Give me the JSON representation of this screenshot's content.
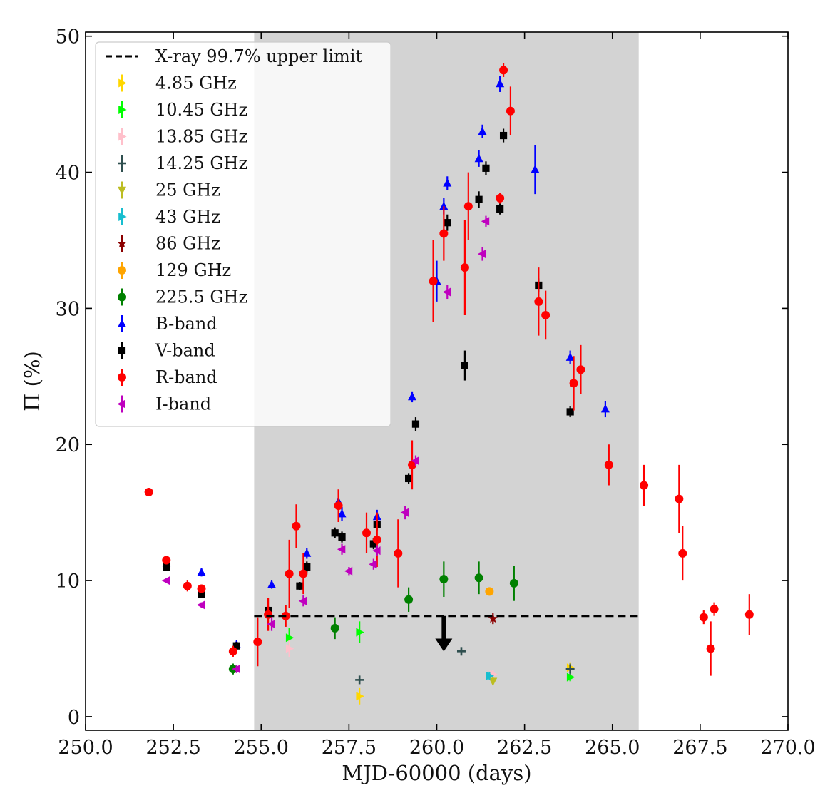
{
  "chart_data": {
    "type": "scatter",
    "title": "",
    "xlabel": "MJD-60000 (days)",
    "ylabel": "Π (%)",
    "xlim": [
      250.0,
      270.0
    ],
    "ylim": [
      -1.0,
      50.3
    ],
    "xticks": [
      250.0,
      252.5,
      255.0,
      257.5,
      260.0,
      262.5,
      265.0,
      267.5,
      270.0
    ],
    "xtick_labels": [
      "250.0",
      "252.5",
      "255.0",
      "257.5",
      "260.0",
      "262.5",
      "265.0",
      "267.5",
      "270.0"
    ],
    "yticks": [
      0,
      10,
      20,
      30,
      40,
      50
    ],
    "ytick_labels": [
      "0",
      "10",
      "20",
      "30",
      "40",
      "50"
    ],
    "grid": false,
    "legend_position": "upper-left",
    "shaded_interval": {
      "x_start": 254.8,
      "x_end": 265.75,
      "color": "#d3d3d3"
    },
    "upper_limit": {
      "name": "X-ray 99.7% upper limit",
      "x_range": [
        254.8,
        265.75
      ],
      "value": 7.4,
      "arrow_x": 260.2,
      "arrow_to": 5.0,
      "color": "#000000"
    },
    "series": [
      {
        "name": "4.85 GHz",
        "color": "#ffd700",
        "marker": "tri-right",
        "points": [
          [
            257.8,
            1.5,
            0.6
          ],
          [
            263.8,
            3.6,
            0.4
          ]
        ]
      },
      {
        "name": "10.45 GHz",
        "color": "#00ff00",
        "marker": "tri-right",
        "points": [
          [
            255.8,
            5.8,
            0.7
          ],
          [
            257.8,
            6.2,
            0.8
          ],
          [
            263.8,
            2.9,
            0.3
          ]
        ]
      },
      {
        "name": "13.85 GHz",
        "color": "#ffc0cb",
        "marker": "tri-right",
        "points": [
          [
            255.8,
            5.0,
            0.6
          ],
          [
            261.6,
            3.1,
            0.3
          ]
        ]
      },
      {
        "name": "14.25 GHz",
        "color": "#2f4f4f",
        "marker": "plus",
        "points": [
          [
            257.8,
            2.7,
            0.3
          ],
          [
            260.7,
            4.8,
            0.3
          ],
          [
            263.8,
            3.5,
            0.4
          ]
        ]
      },
      {
        "name": "25 GHz",
        "color": "#bcbd22",
        "marker": "tri-down",
        "points": [
          [
            261.6,
            2.6,
            0.3
          ]
        ]
      },
      {
        "name": "43 GHz",
        "color": "#17becf",
        "marker": "tri-right",
        "points": [
          [
            261.5,
            3.0,
            0.3
          ]
        ]
      },
      {
        "name": "86 GHz",
        "color": "#8b0000",
        "marker": "star",
        "points": [
          [
            261.6,
            7.2,
            0.4
          ]
        ]
      },
      {
        "name": "129 GHz",
        "color": "#ffa500",
        "marker": "circle",
        "points": [
          [
            261.5,
            9.2,
            0.3
          ]
        ]
      },
      {
        "name": "225.5 GHz",
        "color": "#008000",
        "marker": "circle",
        "points": [
          [
            254.2,
            3.5,
            0.4
          ],
          [
            257.1,
            6.5,
            0.8
          ],
          [
            259.2,
            8.6,
            0.9
          ],
          [
            260.2,
            10.1,
            1.3
          ],
          [
            261.2,
            10.2,
            1.2
          ],
          [
            262.2,
            9.8,
            1.3
          ]
        ]
      },
      {
        "name": "B-band",
        "color": "#0000ff",
        "marker": "triangle-up",
        "points": [
          [
            252.3,
            11.3,
            0.3
          ],
          [
            253.3,
            10.6,
            0.3
          ],
          [
            254.3,
            5.3,
            0.3
          ],
          [
            255.3,
            9.7,
            0.3
          ],
          [
            256.3,
            12.0,
            0.4
          ],
          [
            257.2,
            15.8,
            0.6
          ],
          [
            257.3,
            14.9,
            0.5
          ],
          [
            258.3,
            14.7,
            0.5
          ],
          [
            259.3,
            23.5,
            0.4
          ],
          [
            260.0,
            32.0,
            1.5
          ],
          [
            260.2,
            37.5,
            0.6
          ],
          [
            260.3,
            39.2,
            0.5
          ],
          [
            261.2,
            41.0,
            0.6
          ],
          [
            261.3,
            43.0,
            0.5
          ],
          [
            261.8,
            46.5,
            0.6
          ],
          [
            262.8,
            40.2,
            1.8
          ],
          [
            263.8,
            26.4,
            0.5
          ],
          [
            264.8,
            22.6,
            0.6
          ]
        ]
      },
      {
        "name": "V-band",
        "color": "#000000",
        "marker": "square",
        "points": [
          [
            252.3,
            11.0,
            0.3
          ],
          [
            253.3,
            9.0,
            0.3
          ],
          [
            254.3,
            5.2,
            0.3
          ],
          [
            255.2,
            7.8,
            0.3
          ],
          [
            256.1,
            9.6,
            0.3
          ],
          [
            256.3,
            11.0,
            0.4
          ],
          [
            257.1,
            13.5,
            0.4
          ],
          [
            257.3,
            13.2,
            0.4
          ],
          [
            258.2,
            12.7,
            0.4
          ],
          [
            258.3,
            14.1,
            0.4
          ],
          [
            259.2,
            17.5,
            0.4
          ],
          [
            259.4,
            21.5,
            0.5
          ],
          [
            260.3,
            36.3,
            0.6
          ],
          [
            260.8,
            25.8,
            1.1
          ],
          [
            261.2,
            38.0,
            0.6
          ],
          [
            261.4,
            40.3,
            0.5
          ],
          [
            261.8,
            37.3,
            0.4
          ],
          [
            261.9,
            42.7,
            0.5
          ],
          [
            262.9,
            31.7,
            0.5
          ],
          [
            263.8,
            22.4,
            0.4
          ]
        ]
      },
      {
        "name": "R-band",
        "color": "#ff0000",
        "marker": "circle",
        "points": [
          [
            251.8,
            16.5,
            0.3
          ],
          [
            252.3,
            11.5,
            0.3
          ],
          [
            252.9,
            9.6,
            0.4
          ],
          [
            253.3,
            9.4,
            0.3
          ],
          [
            254.2,
            4.8,
            0.4
          ],
          [
            254.9,
            5.5,
            1.8
          ],
          [
            255.2,
            7.5,
            1.2
          ],
          [
            255.7,
            7.4,
            0.8
          ],
          [
            255.8,
            10.5,
            2.5
          ],
          [
            256.0,
            14.0,
            1.6
          ],
          [
            256.2,
            10.5,
            1.5
          ],
          [
            257.2,
            15.5,
            1.2
          ],
          [
            258.0,
            13.5,
            1.5
          ],
          [
            258.3,
            13.0,
            2.0
          ],
          [
            258.9,
            12.0,
            2.5
          ],
          [
            259.3,
            18.5,
            1.8
          ],
          [
            259.9,
            32.0,
            3.0
          ],
          [
            260.2,
            35.5,
            2.0
          ],
          [
            260.8,
            33.0,
            3.5
          ],
          [
            260.9,
            37.5,
            2.5
          ],
          [
            261.9,
            47.5,
            0.5
          ],
          [
            261.8,
            38.1,
            0.4
          ],
          [
            262.1,
            44.5,
            1.8
          ],
          [
            262.9,
            30.5,
            2.5
          ],
          [
            263.1,
            29.5,
            1.8
          ],
          [
            263.9,
            24.5,
            2.0
          ],
          [
            264.1,
            25.5,
            1.8
          ],
          [
            264.9,
            18.5,
            1.5
          ],
          [
            265.9,
            17.0,
            1.5
          ],
          [
            266.9,
            16.0,
            2.5
          ],
          [
            267.0,
            12.0,
            2.0
          ],
          [
            267.6,
            7.3,
            0.5
          ],
          [
            267.8,
            5.0,
            2.0
          ],
          [
            267.9,
            7.9,
            0.5
          ],
          [
            268.9,
            7.5,
            1.5
          ]
        ]
      },
      {
        "name": "I-band",
        "color": "#bf00bf",
        "marker": "tri-left",
        "points": [
          [
            252.3,
            10.0,
            0.2
          ],
          [
            253.3,
            8.2,
            0.2
          ],
          [
            254.3,
            3.5,
            0.3
          ],
          [
            255.3,
            6.8,
            0.5
          ],
          [
            256.2,
            8.5,
            0.4
          ],
          [
            257.3,
            12.3,
            0.4
          ],
          [
            257.5,
            10.7,
            0.3
          ],
          [
            258.2,
            11.2,
            0.4
          ],
          [
            258.3,
            12.2,
            0.4
          ],
          [
            259.1,
            15.0,
            0.5
          ],
          [
            259.4,
            18.8,
            0.4
          ],
          [
            260.3,
            31.2,
            0.5
          ],
          [
            261.3,
            34.0,
            0.5
          ],
          [
            261.4,
            36.4,
            0.4
          ]
        ]
      }
    ]
  }
}
